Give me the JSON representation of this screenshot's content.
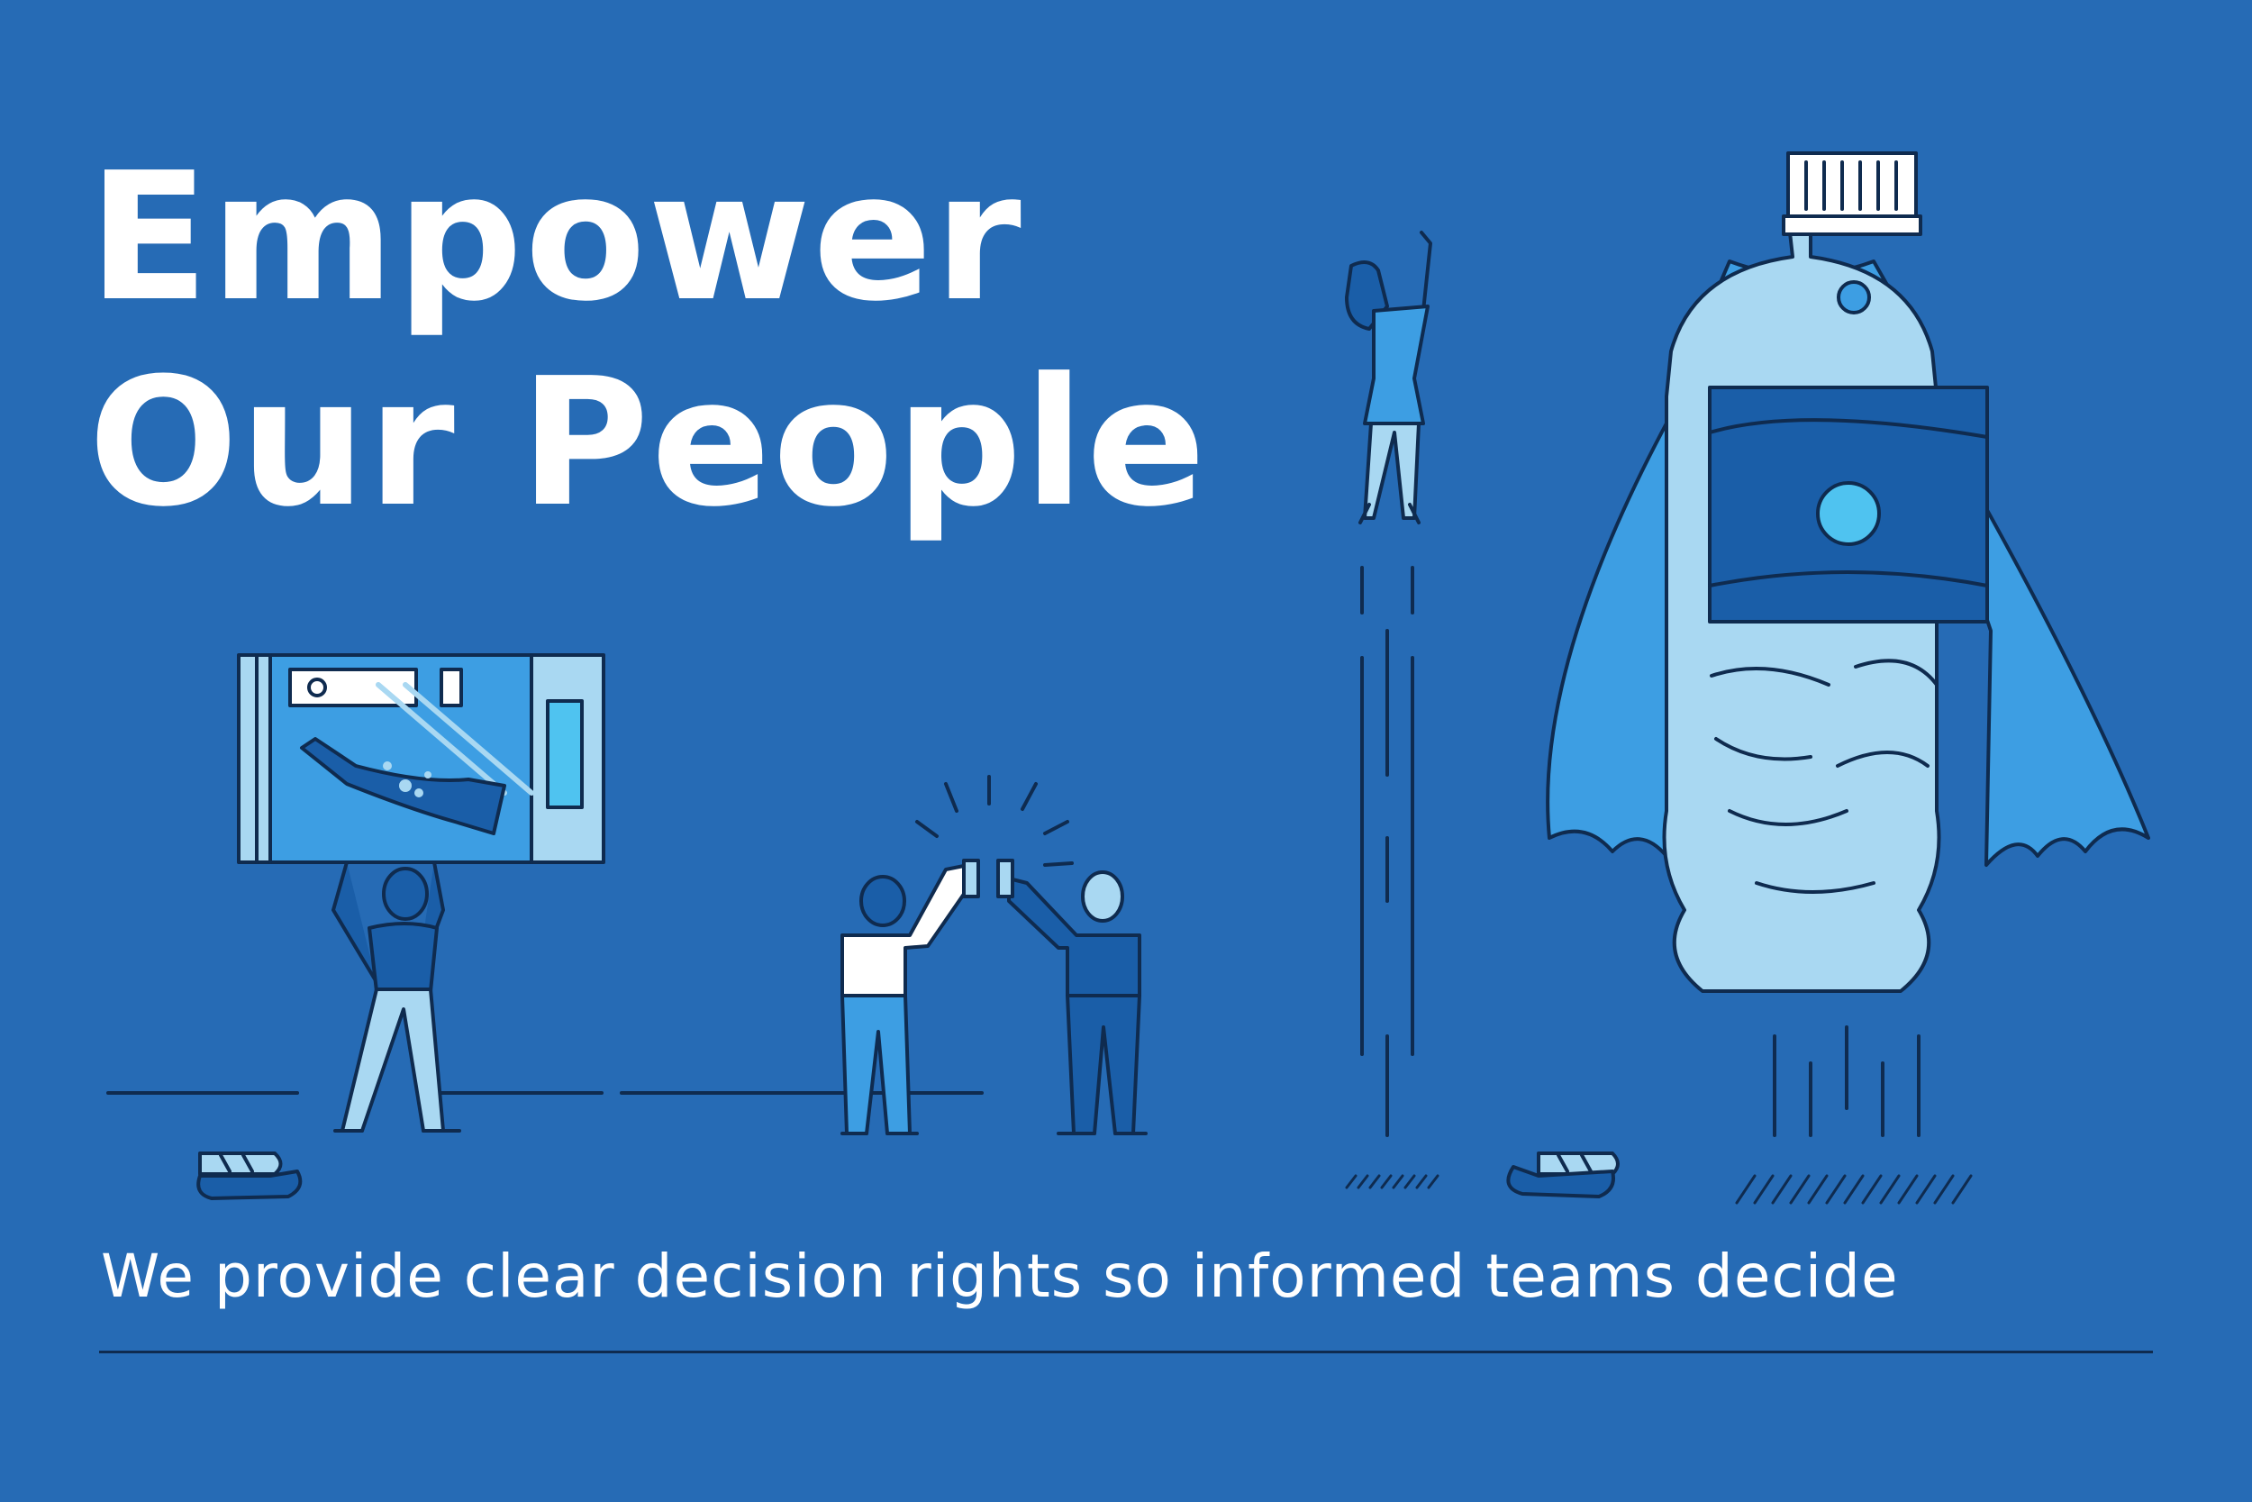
{
  "headline": {
    "line1": "Empower",
    "line2": "Our People"
  },
  "tagline": "We provide clear decision rights so informed teams decide",
  "colors": {
    "background": "#266bb5",
    "outline": "#0f2b4f",
    "light_blue": "#a9d8f2",
    "mid_blue": "#3d9ee3",
    "accent_cyan": "#4fc3f0",
    "deep_blue": "#1a5ea8",
    "white": "#ffffff"
  },
  "illustration": {
    "figures": [
      "person-lifting-vending-screen",
      "two-people-high-five",
      "woman-flying-upward",
      "caped-bottle-rocket"
    ],
    "icons": [
      "bottle-icon",
      "crushed-bottle-icon"
    ]
  }
}
